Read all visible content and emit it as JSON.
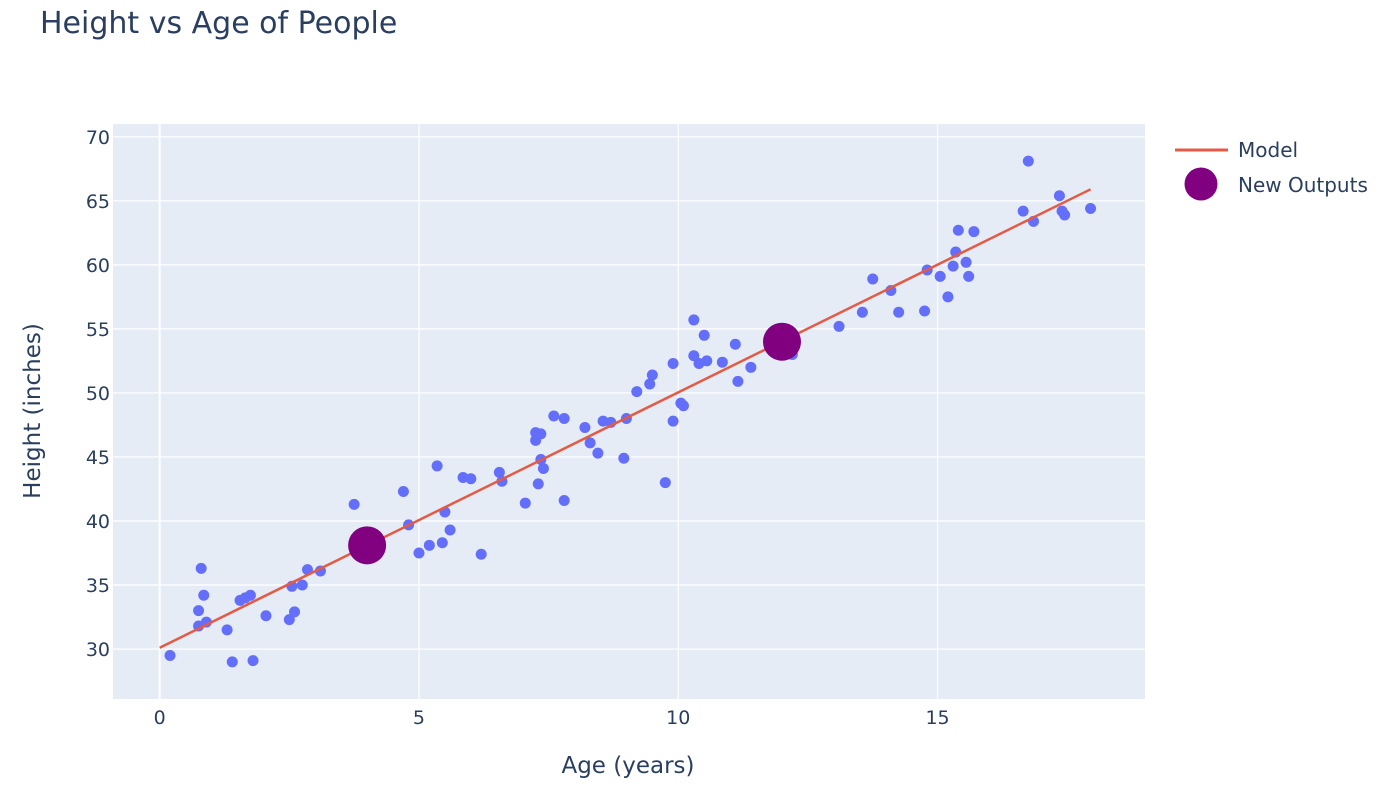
{
  "chart_data": {
    "type": "scatter",
    "title": "Height vs Age of People",
    "xlabel": "Age (years)",
    "ylabel": "Height (inches)",
    "xlim": [
      -0.9,
      19.0
    ],
    "ylim": [
      26.1,
      71.0
    ],
    "xticks": [
      0,
      5,
      10,
      15
    ],
    "yticks": [
      30,
      35,
      40,
      45,
      50,
      55,
      60,
      65,
      70
    ],
    "grid": true,
    "legend_position": "top-right",
    "colors": {
      "background": "#e5ecf6",
      "data_points": "#636efa",
      "model": "#e45a45",
      "new_outputs": "#800080",
      "text": "#2a3f5f",
      "grid": "#ffffff"
    },
    "series": [
      {
        "type": "scatter",
        "points": [
          [
            0.2,
            29.5
          ],
          [
            0.75,
            31.8
          ],
          [
            0.75,
            33.0
          ],
          [
            0.8,
            36.3
          ],
          [
            0.85,
            34.2
          ],
          [
            0.9,
            32.1
          ],
          [
            1.3,
            31.5
          ],
          [
            1.4,
            29.0
          ],
          [
            1.55,
            33.8
          ],
          [
            1.65,
            34.0
          ],
          [
            1.75,
            34.2
          ],
          [
            1.8,
            29.1
          ],
          [
            2.05,
            32.6
          ],
          [
            2.5,
            32.3
          ],
          [
            2.55,
            34.9
          ],
          [
            2.6,
            32.9
          ],
          [
            2.75,
            35.0
          ],
          [
            2.85,
            36.2
          ],
          [
            3.1,
            36.1
          ],
          [
            3.75,
            41.3
          ],
          [
            4.7,
            42.3
          ],
          [
            4.8,
            39.7
          ],
          [
            5.0,
            37.5
          ],
          [
            5.2,
            38.1
          ],
          [
            5.35,
            44.3
          ],
          [
            5.45,
            38.3
          ],
          [
            5.5,
            40.7
          ],
          [
            5.6,
            39.3
          ],
          [
            5.85,
            43.4
          ],
          [
            6.0,
            43.3
          ],
          [
            6.2,
            37.4
          ],
          [
            6.55,
            43.8
          ],
          [
            6.6,
            43.1
          ],
          [
            7.05,
            41.4
          ],
          [
            7.25,
            46.9
          ],
          [
            7.25,
            46.3
          ],
          [
            7.3,
            42.9
          ],
          [
            7.35,
            46.8
          ],
          [
            7.35,
            44.8
          ],
          [
            7.4,
            44.1
          ],
          [
            7.6,
            48.2
          ],
          [
            7.8,
            48.0
          ],
          [
            7.8,
            41.6
          ],
          [
            8.2,
            47.3
          ],
          [
            8.3,
            46.1
          ],
          [
            8.45,
            45.3
          ],
          [
            8.55,
            47.8
          ],
          [
            8.7,
            47.7
          ],
          [
            8.95,
            44.9
          ],
          [
            9.0,
            48.0
          ],
          [
            9.2,
            50.1
          ],
          [
            9.45,
            50.7
          ],
          [
            9.5,
            51.4
          ],
          [
            9.75,
            43.0
          ],
          [
            9.9,
            52.3
          ],
          [
            9.9,
            47.8
          ],
          [
            10.05,
            49.2
          ],
          [
            10.1,
            49.0
          ],
          [
            10.3,
            52.9
          ],
          [
            10.3,
            55.7
          ],
          [
            10.4,
            52.3
          ],
          [
            10.5,
            54.5
          ],
          [
            10.55,
            52.5
          ],
          [
            10.85,
            52.4
          ],
          [
            11.1,
            53.8
          ],
          [
            11.15,
            50.9
          ],
          [
            11.4,
            52.0
          ],
          [
            12.2,
            53.0
          ],
          [
            13.1,
            55.2
          ],
          [
            13.55,
            56.3
          ],
          [
            13.75,
            58.9
          ],
          [
            14.1,
            58.0
          ],
          [
            14.25,
            56.3
          ],
          [
            14.75,
            56.4
          ],
          [
            14.8,
            59.6
          ],
          [
            15.05,
            59.1
          ],
          [
            15.2,
            57.5
          ],
          [
            15.3,
            59.9
          ],
          [
            15.35,
            61.0
          ],
          [
            15.4,
            62.7
          ],
          [
            15.55,
            60.2
          ],
          [
            15.6,
            59.1
          ],
          [
            15.7,
            62.6
          ],
          [
            16.65,
            64.2
          ],
          [
            16.75,
            68.1
          ],
          [
            16.85,
            63.4
          ],
          [
            17.35,
            65.4
          ],
          [
            17.4,
            64.2
          ],
          [
            17.45,
            63.9
          ],
          [
            17.95,
            64.4
          ]
        ]
      },
      {
        "name": "Model",
        "type": "line",
        "x": [
          0,
          17.95
        ],
        "y": [
          30.1,
          65.9
        ]
      },
      {
        "name": "New Outputs",
        "type": "scatter",
        "points": [
          [
            4.0,
            38.1
          ],
          [
            12.0,
            54.0
          ]
        ]
      }
    ]
  }
}
